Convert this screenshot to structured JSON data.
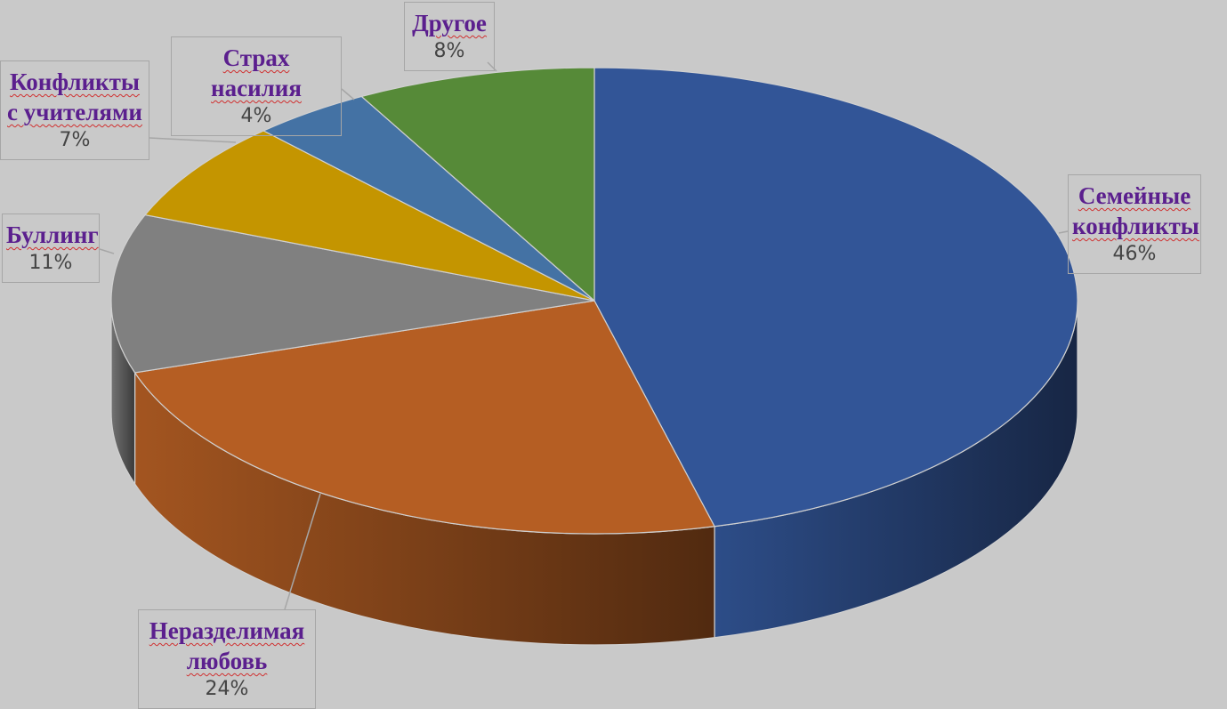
{
  "chart_data": {
    "type": "pie3d",
    "categories": [
      "Семейные конфликты",
      "Неразделимая любовь",
      "Буллинг",
      "Конфликты с учителями",
      "Страх насилия",
      "Другое"
    ],
    "values": [
      46,
      24,
      11,
      7,
      4,
      8
    ],
    "value_labels": [
      "46%",
      "24%",
      "11%",
      "7%",
      "4%",
      "8%"
    ],
    "colors": [
      "#325597",
      "#b55e23",
      "#808080",
      "#c49500",
      "#4472a4",
      "#568a38"
    ]
  }
}
